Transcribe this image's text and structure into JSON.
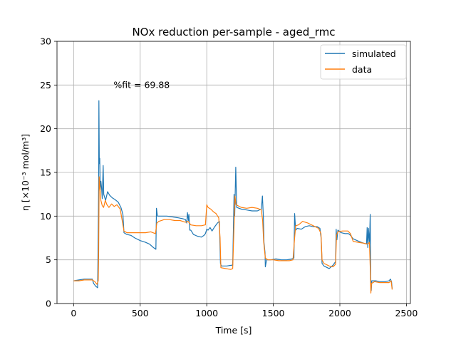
{
  "chart_data": {
    "type": "line",
    "title": "NOx reduction per-sample - aged_rmc",
    "xlabel": "Time [s]",
    "ylabel": "η   [×10⁻³ mol/m³]",
    "xlim": [
      -125,
      2530
    ],
    "ylim": [
      0,
      30
    ],
    "xticks": [
      0,
      500,
      1000,
      1500,
      2000,
      2500
    ],
    "yticks": [
      0,
      5,
      10,
      15,
      20,
      25,
      30
    ],
    "grid": true,
    "legend_position": "top-right",
    "annotation": {
      "text": "%fit = 69.88",
      "x": 300,
      "y": 25
    },
    "series": [
      {
        "name": "simulated",
        "color": "#1f77b4",
        "points": [
          [
            0,
            2.6
          ],
          [
            40,
            2.7
          ],
          [
            80,
            2.8
          ],
          [
            120,
            2.8
          ],
          [
            140,
            2.8
          ],
          [
            150,
            2.3
          ],
          [
            165,
            2.0
          ],
          [
            180,
            1.8
          ],
          [
            183,
            5.0
          ],
          [
            186,
            10.0
          ],
          [
            188,
            14.0
          ],
          [
            190,
            23.2
          ],
          [
            193,
            16.0
          ],
          [
            196,
            16.6
          ],
          [
            200,
            13.0
          ],
          [
            205,
            14.0
          ],
          [
            210,
            13.2
          ],
          [
            215,
            12.0
          ],
          [
            222,
            15.8
          ],
          [
            226,
            12.5
          ],
          [
            240,
            11.8
          ],
          [
            255,
            12.8
          ],
          [
            270,
            12.4
          ],
          [
            290,
            12.1
          ],
          [
            310,
            11.9
          ],
          [
            335,
            11.6
          ],
          [
            355,
            11.0
          ],
          [
            370,
            10.2
          ],
          [
            378,
            8.1
          ],
          [
            400,
            7.9
          ],
          [
            430,
            7.8
          ],
          [
            460,
            7.5
          ],
          [
            500,
            7.2
          ],
          [
            540,
            7.0
          ],
          [
            570,
            6.8
          ],
          [
            600,
            6.4
          ],
          [
            618,
            6.2
          ],
          [
            622,
            10.9
          ],
          [
            630,
            10.0
          ],
          [
            660,
            10.0
          ],
          [
            700,
            10.0
          ],
          [
            750,
            9.9
          ],
          [
            790,
            9.8
          ],
          [
            820,
            9.7
          ],
          [
            840,
            9.6
          ],
          [
            850,
            9.2
          ],
          [
            855,
            10.4
          ],
          [
            862,
            9.5
          ],
          [
            866,
            10.2
          ],
          [
            872,
            8.4
          ],
          [
            880,
            8.4
          ],
          [
            900,
            7.9
          ],
          [
            930,
            7.7
          ],
          [
            960,
            7.6
          ],
          [
            980,
            7.8
          ],
          [
            990,
            8.0
          ],
          [
            1000,
            8.5
          ],
          [
            1010,
            8.4
          ],
          [
            1025,
            8.7
          ],
          [
            1040,
            8.3
          ],
          [
            1060,
            8.8
          ],
          [
            1080,
            9.2
          ],
          [
            1095,
            9.4
          ],
          [
            1103,
            4.6
          ],
          [
            1110,
            4.3
          ],
          [
            1150,
            4.3
          ],
          [
            1195,
            4.4
          ],
          [
            1205,
            12.5
          ],
          [
            1210,
            10.0
          ],
          [
            1218,
            15.6
          ],
          [
            1225,
            11.0
          ],
          [
            1260,
            10.8
          ],
          [
            1300,
            10.7
          ],
          [
            1340,
            10.6
          ],
          [
            1380,
            10.6
          ],
          [
            1410,
            10.8
          ],
          [
            1418,
            12.3
          ],
          [
            1425,
            10.0
          ],
          [
            1430,
            7.0
          ],
          [
            1438,
            5.8
          ],
          [
            1440,
            4.2
          ],
          [
            1450,
            5.0
          ],
          [
            1480,
            5.0
          ],
          [
            1520,
            5.1
          ],
          [
            1560,
            5.0
          ],
          [
            1600,
            5.0
          ],
          [
            1640,
            5.1
          ],
          [
            1655,
            5.2
          ],
          [
            1660,
            10.3
          ],
          [
            1668,
            8.4
          ],
          [
            1680,
            8.6
          ],
          [
            1710,
            8.5
          ],
          [
            1740,
            8.8
          ],
          [
            1770,
            8.9
          ],
          [
            1800,
            8.8
          ],
          [
            1830,
            8.8
          ],
          [
            1850,
            8.6
          ],
          [
            1860,
            7.4
          ],
          [
            1866,
            4.6
          ],
          [
            1880,
            4.3
          ],
          [
            1920,
            4.0
          ],
          [
            1950,
            4.4
          ],
          [
            1968,
            4.8
          ],
          [
            1972,
            8.5
          ],
          [
            1978,
            7.3
          ],
          [
            1985,
            8.4
          ],
          [
            2010,
            8.1
          ],
          [
            2040,
            8.0
          ],
          [
            2065,
            8.0
          ],
          [
            2080,
            7.8
          ],
          [
            2100,
            7.4
          ],
          [
            2130,
            7.2
          ],
          [
            2160,
            7.0
          ],
          [
            2200,
            6.8
          ],
          [
            2205,
            8.7
          ],
          [
            2210,
            6.4
          ],
          [
            2215,
            8.6
          ],
          [
            2222,
            6.8
          ],
          [
            2228,
            10.2
          ],
          [
            2232,
            3.0
          ],
          [
            2236,
            1.5
          ],
          [
            2240,
            2.6
          ],
          [
            2270,
            2.6
          ],
          [
            2300,
            2.5
          ],
          [
            2340,
            2.5
          ],
          [
            2370,
            2.6
          ],
          [
            2380,
            2.8
          ],
          [
            2388,
            2.5
          ],
          [
            2393,
            1.7
          ]
        ]
      },
      {
        "name": "data",
        "color": "#ff7f0e",
        "points": [
          [
            0,
            2.6
          ],
          [
            40,
            2.6
          ],
          [
            80,
            2.7
          ],
          [
            120,
            2.7
          ],
          [
            140,
            2.7
          ],
          [
            160,
            2.5
          ],
          [
            175,
            2.2
          ],
          [
            185,
            2.6
          ],
          [
            188,
            6.0
          ],
          [
            192,
            14.5
          ],
          [
            196,
            13.5
          ],
          [
            205,
            11.8
          ],
          [
            215,
            11.2
          ],
          [
            225,
            11.0
          ],
          [
            238,
            11.8
          ],
          [
            250,
            11.3
          ],
          [
            265,
            11.0
          ],
          [
            285,
            11.4
          ],
          [
            305,
            11.1
          ],
          [
            325,
            11.3
          ],
          [
            350,
            10.8
          ],
          [
            365,
            9.5
          ],
          [
            378,
            8.3
          ],
          [
            400,
            8.1
          ],
          [
            450,
            8.1
          ],
          [
            500,
            8.1
          ],
          [
            540,
            8.1
          ],
          [
            580,
            8.2
          ],
          [
            615,
            8.0
          ],
          [
            625,
            9.2
          ],
          [
            640,
            9.4
          ],
          [
            680,
            9.6
          ],
          [
            720,
            9.6
          ],
          [
            760,
            9.5
          ],
          [
            800,
            9.5
          ],
          [
            840,
            9.3
          ],
          [
            860,
            9.4
          ],
          [
            880,
            9.0
          ],
          [
            920,
            8.9
          ],
          [
            960,
            8.9
          ],
          [
            990,
            9.0
          ],
          [
            1000,
            11.3
          ],
          [
            1010,
            11.0
          ],
          [
            1030,
            10.8
          ],
          [
            1050,
            10.5
          ],
          [
            1070,
            10.3
          ],
          [
            1090,
            9.8
          ],
          [
            1100,
            7.5
          ],
          [
            1106,
            4.1
          ],
          [
            1140,
            4.0
          ],
          [
            1180,
            3.9
          ],
          [
            1195,
            4.0
          ],
          [
            1205,
            9.0
          ],
          [
            1212,
            12.3
          ],
          [
            1220,
            11.3
          ],
          [
            1260,
            11.0
          ],
          [
            1300,
            10.9
          ],
          [
            1340,
            11.0
          ],
          [
            1380,
            10.9
          ],
          [
            1410,
            10.7
          ],
          [
            1420,
            9.5
          ],
          [
            1428,
            7.0
          ],
          [
            1440,
            5.2
          ],
          [
            1460,
            5.0
          ],
          [
            1500,
            5.0
          ],
          [
            1540,
            4.9
          ],
          [
            1580,
            4.9
          ],
          [
            1620,
            4.9
          ],
          [
            1648,
            5.0
          ],
          [
            1660,
            7.5
          ],
          [
            1668,
            8.9
          ],
          [
            1690,
            9.0
          ],
          [
            1720,
            9.4
          ],
          [
            1760,
            9.2
          ],
          [
            1800,
            8.9
          ],
          [
            1840,
            8.6
          ],
          [
            1858,
            8.0
          ],
          [
            1866,
            5.0
          ],
          [
            1880,
            4.6
          ],
          [
            1920,
            4.3
          ],
          [
            1950,
            4.2
          ],
          [
            1968,
            4.5
          ],
          [
            1975,
            7.8
          ],
          [
            1985,
            8.2
          ],
          [
            2020,
            8.3
          ],
          [
            2060,
            8.3
          ],
          [
            2080,
            8.0
          ],
          [
            2100,
            7.1
          ],
          [
            2140,
            7.0
          ],
          [
            2180,
            6.9
          ],
          [
            2210,
            6.8
          ],
          [
            2222,
            7.0
          ],
          [
            2228,
            4.2
          ],
          [
            2233,
            1.2
          ],
          [
            2238,
            2.3
          ],
          [
            2260,
            2.5
          ],
          [
            2300,
            2.4
          ],
          [
            2340,
            2.4
          ],
          [
            2370,
            2.4
          ],
          [
            2385,
            2.6
          ],
          [
            2393,
            1.6
          ]
        ]
      }
    ]
  }
}
